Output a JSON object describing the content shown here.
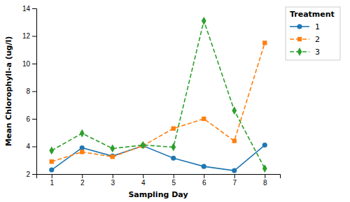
{
  "chart_data": {
    "type": "line",
    "x": [
      1,
      2,
      3,
      4,
      5,
      6,
      7,
      8
    ],
    "series": [
      {
        "name": "1",
        "values": [
          2.3,
          3.9,
          3.3,
          4.05,
          3.15,
          2.55,
          2.25,
          4.1
        ],
        "marker": "circle",
        "line_style": "solid"
      },
      {
        "name": "2",
        "values": [
          2.9,
          3.6,
          3.25,
          4.05,
          5.3,
          6.0,
          4.4,
          11.5
        ],
        "marker": "square",
        "line_style": "dashed"
      },
      {
        "name": "3",
        "values": [
          3.7,
          4.95,
          3.85,
          4.1,
          3.95,
          13.1,
          6.6,
          2.4
        ],
        "marker": "diamond",
        "line_style": "dashed"
      }
    ],
    "xlabel": "Sampling Day",
    "ylabel": "Mean Chlorophyll-a (ug/l)",
    "xlim": [
      0.5,
      8.5
    ],
    "ylim": [
      2,
      14
    ],
    "xticks": [
      1,
      2,
      3,
      4,
      5,
      6,
      7,
      8
    ],
    "yticks": [
      2,
      4,
      6,
      8,
      10,
      12,
      14
    ],
    "legend_title": "Treatment",
    "legend": "right"
  }
}
